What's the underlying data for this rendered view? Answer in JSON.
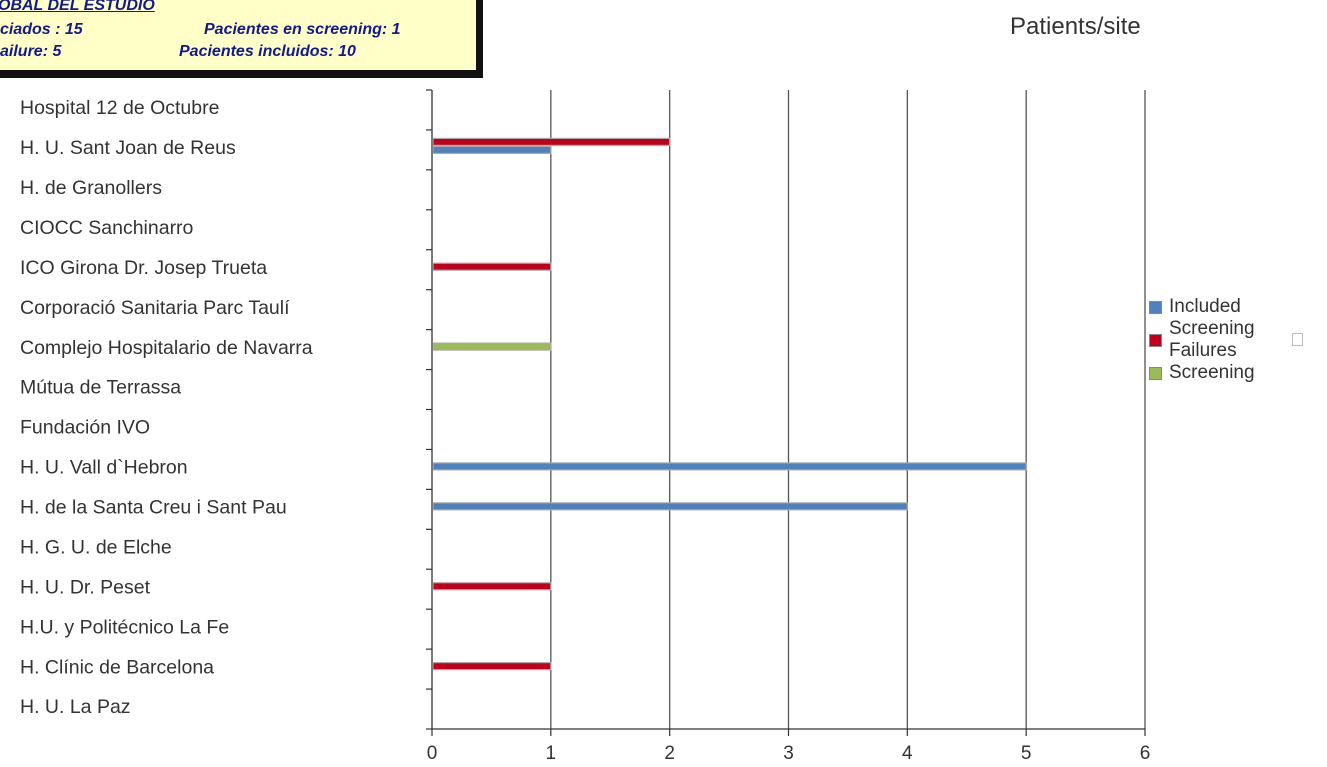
{
  "summary": {
    "heading": "OBAL DEL ESTUDIO",
    "iniciados": "ciados : 15",
    "screening": "Pacientes en screening: 1",
    "failure": "ailure: 5",
    "incluidos": "Pacientes incluidos: 10"
  },
  "chart_data": {
    "type": "bar",
    "orientation": "horizontal",
    "title": "Patients/site",
    "categories": [
      "Hospital 12 de Octubre",
      "H. U. Sant Joan de Reus",
      "H. de Granollers",
      "CIOCC Sanchinarro",
      "ICO Girona Dr. Josep Trueta",
      "Corporació Sanitaria Parc Taulí",
      "Complejo Hospitalario de Navarra",
      "Mútua de Terrassa",
      "Fundación IVO",
      "H. U. Vall d`Hebron",
      "H. de la Santa Creu i Sant Pau",
      "H. G. U. de Elche",
      "H. U. Dr. Peset",
      "H.U. y Politécnico La Fe",
      "H. Clínic de Barcelona",
      "H. U. La Paz"
    ],
    "series": [
      {
        "name": "Included",
        "color": "#4f81bd",
        "values": [
          0,
          1,
          0,
          0,
          0,
          0,
          0,
          0,
          0,
          5,
          4,
          0,
          0,
          0,
          0,
          0
        ]
      },
      {
        "name": "Screening Failures",
        "color": "#c0001a",
        "values": [
          0,
          2,
          0,
          0,
          1,
          0,
          0,
          0,
          0,
          0,
          0,
          0,
          1,
          0,
          1,
          0
        ]
      },
      {
        "name": "Screening",
        "color": "#9bbb59",
        "values": [
          0,
          0,
          0,
          0,
          0,
          0,
          1,
          0,
          0,
          0,
          0,
          0,
          0,
          0,
          0,
          0
        ]
      }
    ],
    "xlim": [
      0,
      6
    ],
    "xticks": [
      "0",
      "1",
      "2",
      "3",
      "4",
      "5",
      "6"
    ],
    "grid": "vertical",
    "legend_position": "right"
  },
  "legend": {
    "included": "Included",
    "failures_line1": "Screening",
    "failures_line2": "Failures",
    "screening": "Screening",
    "colors": {
      "included": "#4f81bd",
      "failures": "#c0001a",
      "screening": "#9bbb59"
    }
  }
}
